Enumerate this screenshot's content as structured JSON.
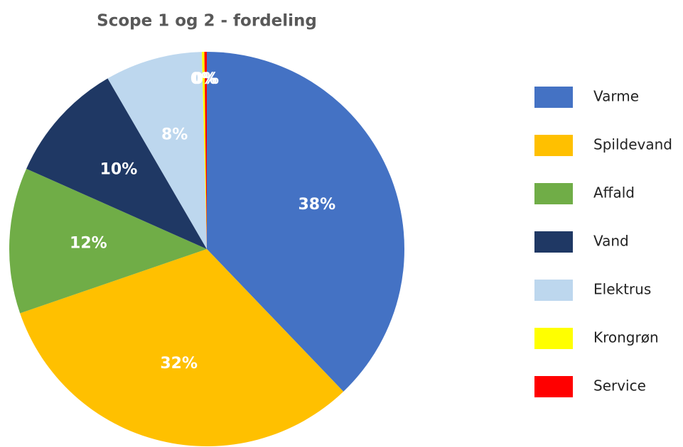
{
  "chart_data": {
    "type": "pie",
    "title": "Scope 1 og 2 - fordeling",
    "categories": [
      "Varme",
      "Spildevand",
      "Affald",
      "Vand",
      "Elektrus",
      "Krongrøn",
      "Service"
    ],
    "values": [
      38,
      32,
      12,
      10,
      8,
      0.2,
      0.2
    ],
    "value_labels": [
      "38%",
      "32%",
      "12%",
      "10%",
      "8%",
      "0%",
      "0%"
    ],
    "colors": [
      "#4472c4",
      "#ffc000",
      "#70ad47",
      "#1f3864",
      "#bdd7ee",
      "#ffff00",
      "#ff0000"
    ],
    "legend": "right"
  }
}
